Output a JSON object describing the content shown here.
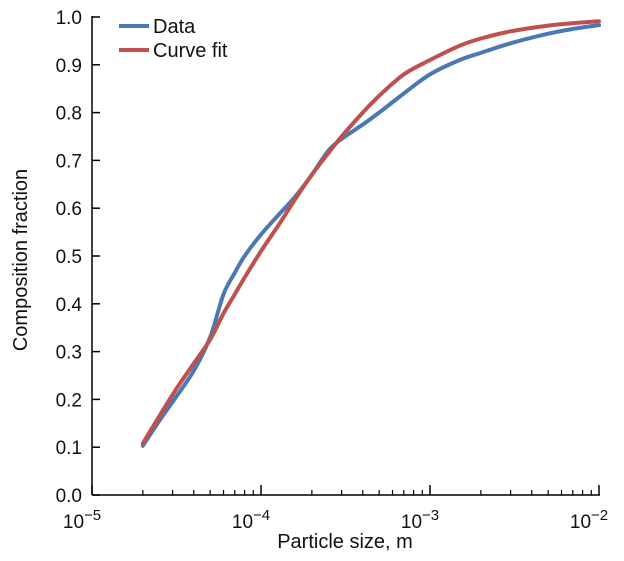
{
  "chart_data": {
    "type": "line",
    "xlabel": "Particle size, m",
    "ylabel": "Composition fraction",
    "x_scale": "log",
    "xlim": [
      1e-05,
      0.01
    ],
    "ylim": [
      0.0,
      1.0
    ],
    "x_ticks": [
      {
        "value": 1e-05,
        "base": "10",
        "exp": "−5"
      },
      {
        "value": 0.0001,
        "base": "10",
        "exp": "−4"
      },
      {
        "value": 0.001,
        "base": "10",
        "exp": "−3"
      },
      {
        "value": 0.01,
        "base": "10",
        "exp": "−2"
      }
    ],
    "y_ticks": [
      "0.0",
      "0.1",
      "0.2",
      "0.3",
      "0.4",
      "0.5",
      "0.6",
      "0.7",
      "0.8",
      "0.9",
      "1.0"
    ],
    "grid": false,
    "legend_position": "top-left",
    "series": [
      {
        "name": "Data",
        "color": "#4a78b5",
        "x": [
          2e-05,
          2.5e-05,
          3e-05,
          4e-05,
          5e-05,
          6e-05,
          7e-05,
          8e-05,
          0.0001,
          0.00013,
          0.00016,
          0.0002,
          0.00025,
          0.0003,
          0.0004,
          0.0005,
          0.0007,
          0.001,
          0.0015,
          0.002,
          0.003,
          0.005,
          0.007,
          0.01
        ],
        "y": [
          0.103,
          0.155,
          0.195,
          0.26,
          0.33,
          0.42,
          0.465,
          0.5,
          0.545,
          0.59,
          0.625,
          0.67,
          0.72,
          0.745,
          0.775,
          0.8,
          0.84,
          0.88,
          0.91,
          0.925,
          0.945,
          0.965,
          0.975,
          0.983
        ]
      },
      {
        "name": "Curve fit",
        "color": "#c0504d",
        "x": [
          2e-05,
          3e-05,
          4e-05,
          5e-05,
          6e-05,
          7e-05,
          8e-05,
          0.0001,
          0.00013,
          0.00016,
          0.0002,
          0.00025,
          0.0003,
          0.0004,
          0.0005,
          0.0007,
          0.001,
          0.0015,
          0.002,
          0.003,
          0.005,
          0.007,
          0.01
        ],
        "y": [
          0.108,
          0.21,
          0.275,
          0.325,
          0.38,
          0.42,
          0.455,
          0.51,
          0.57,
          0.62,
          0.67,
          0.715,
          0.75,
          0.8,
          0.835,
          0.88,
          0.91,
          0.94,
          0.955,
          0.97,
          0.982,
          0.987,
          0.991
        ]
      }
    ]
  }
}
